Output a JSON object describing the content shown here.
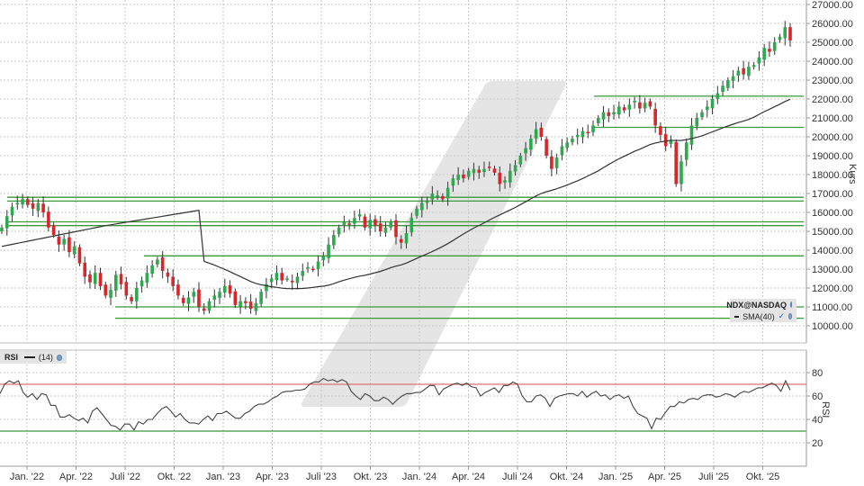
{
  "chart_data": [
    {
      "type": "candlestick",
      "title": "NDX@NASDAQ",
      "instrument": "NDX@NASDAQ",
      "ylabel": "Kurs",
      "ylim": [
        9500,
        27000
      ],
      "yticks": [
        "27000.00",
        "26000.00",
        "25000.00",
        "24000.00",
        "23000.00",
        "22000.00",
        "21000.00",
        "20000.00",
        "19000.00",
        "18000.00",
        "17000.00",
        "16000.00",
        "15000.00",
        "14000.00",
        "13000.00",
        "12000.00",
        "11000.00",
        "10000.00"
      ],
      "xticks": [
        "Jan. '22",
        "Apr. '22",
        "Juli '22",
        "Okt. '22",
        "Jan. '23",
        "Apr. '23",
        "Juli '23",
        "Okt. '23",
        "Jan. '24",
        "Apr. '24",
        "Juli '24",
        "Okt. '24",
        "Jan. '25",
        "Apr. '25",
        "Juli '25",
        "Okt. '25"
      ],
      "grid": true,
      "indicators": [
        {
          "name": "SMA(40)",
          "color": "#333333"
        }
      ],
      "horizontal_lines": [
        {
          "level": 16800,
          "from": "Jan. '22",
          "color": "#3a9a3a"
        },
        {
          "level": 16600,
          "from": "Jan. '22",
          "color": "#3a9a3a"
        },
        {
          "level": 15500,
          "from": "Jan. '22",
          "color": "#3a9a3a"
        },
        {
          "level": 15300,
          "from": "Jan. '22",
          "color": "#3a9a3a"
        },
        {
          "level": 13700,
          "from": "Juli '22",
          "color": "#3a9a3a"
        },
        {
          "level": 11000,
          "from": "Juli '22",
          "color": "#3a9a3a"
        },
        {
          "level": 10400,
          "from": "Juli '22",
          "color": "#3a9a3a"
        },
        {
          "level": 22150,
          "from": "Okt. '24",
          "color": "#3a9a3a"
        },
        {
          "level": 20500,
          "from": "Okt. '24",
          "color": "#3a9a3a"
        }
      ],
      "weekly_close_approx": [
        15200,
        15800,
        16300,
        16500,
        16700,
        16400,
        16200,
        16500,
        16000,
        15200,
        14800,
        14300,
        14600,
        13900,
        14200,
        13300,
        12600,
        12300,
        12800,
        12100,
        11600,
        11900,
        12700,
        12200,
        11600,
        11300,
        12000,
        12400,
        12800,
        13200,
        13500,
        12900,
        12600,
        12100,
        11600,
        11200,
        11500,
        11800,
        11000,
        10800,
        11300,
        11600,
        11800,
        12100,
        11700,
        11100,
        11300,
        11200,
        10900,
        11200,
        11800,
        12200,
        12500,
        12800,
        12400,
        12500,
        12300,
        12600,
        12900,
        13100,
        13000,
        13400,
        13700,
        14300,
        14800,
        15200,
        15500,
        15400,
        15700,
        15900,
        15200,
        15600,
        15300,
        15000,
        15200,
        15500,
        14700,
        14400,
        14900,
        15700,
        16200,
        16500,
        16600,
        17000,
        16900,
        16700,
        17300,
        17800,
        18000,
        17800,
        18200,
        18300,
        18100,
        18300,
        18400,
        18100,
        17500,
        17700,
        18200,
        18500,
        19000,
        19400,
        19900,
        20400,
        20000,
        19000,
        18300,
        18900,
        19500,
        19700,
        19900,
        20100,
        20300,
        20200,
        20600,
        21000,
        21300,
        21100,
        21300,
        21600,
        21400,
        21700,
        21900,
        21500,
        21800,
        21600,
        20600,
        20100,
        19500,
        19800,
        17500,
        18700,
        19700,
        20600,
        21000,
        21300,
        21600,
        22000,
        22300,
        22700,
        23000,
        23200,
        23500,
        23300,
        23700,
        23800,
        24200,
        24700,
        24500,
        25000,
        25300,
        25800,
        25100
      ]
    },
    {
      "type": "line",
      "title": "RSI",
      "parameter": "(14)",
      "ylabel": "RSI",
      "ylim": [
        0,
        100
      ],
      "yticks": [
        "80",
        "60",
        "40",
        "20"
      ],
      "reference_lines": [
        {
          "level": 70,
          "color": "#e07070"
        },
        {
          "level": 30,
          "color": "#3a9a3a"
        }
      ],
      "values_approx": [
        62,
        70,
        73,
        71,
        73,
        63,
        59,
        62,
        57,
        62,
        61,
        52,
        52,
        42,
        42,
        44,
        41,
        39,
        41,
        37,
        47,
        50,
        45,
        40,
        35,
        34,
        31,
        36,
        36,
        31,
        38,
        36,
        40,
        40,
        45,
        49,
        51,
        47,
        42,
        45,
        40,
        37,
        37,
        36,
        40,
        43,
        39,
        45,
        45,
        47,
        44,
        41,
        41,
        45,
        47,
        51,
        53,
        53,
        55,
        58,
        60,
        63,
        64,
        64,
        65,
        65,
        66,
        70,
        72,
        72,
        75,
        73,
        74,
        72,
        74,
        72,
        64,
        60,
        57,
        62,
        60,
        56,
        56,
        59,
        57,
        53,
        57,
        60,
        62,
        62,
        63,
        63,
        66,
        69,
        69,
        61,
        66,
        68,
        70,
        71,
        69,
        71,
        68,
        67,
        60,
        63,
        65,
        67,
        63,
        69,
        69,
        72,
        70,
        60,
        55,
        55,
        60,
        61,
        58,
        51,
        58,
        60,
        61,
        62,
        62,
        60,
        64,
        59,
        62,
        64,
        60,
        61,
        57,
        60,
        61,
        58,
        60,
        51,
        45,
        43,
        41,
        32,
        41,
        40,
        46,
        51,
        51,
        55,
        54,
        57,
        58,
        57,
        60,
        61,
        61,
        59,
        60,
        62,
        61,
        59,
        62,
        64,
        63,
        65,
        67,
        67,
        69,
        71,
        69,
        64,
        73,
        65
      ]
    }
  ],
  "legend": {
    "instrument": "NDX@NASDAQ",
    "sma": "SMA(40)",
    "rsi_label": "RSI",
    "rsi_param": "(14)"
  },
  "axes": {
    "price_axis_title": "Kurs",
    "rsi_axis_title": "RSI"
  },
  "colors": {
    "up": "#2fa84f",
    "down": "#d9262b",
    "wick": "#333333",
    "sma": "#333333",
    "level_line": "#3a9a3a",
    "rsi_upper": "#e07070",
    "rsi_lower": "#3a9a3a",
    "grid": "#c8c8c8",
    "watermark": "#dcdcdc"
  }
}
